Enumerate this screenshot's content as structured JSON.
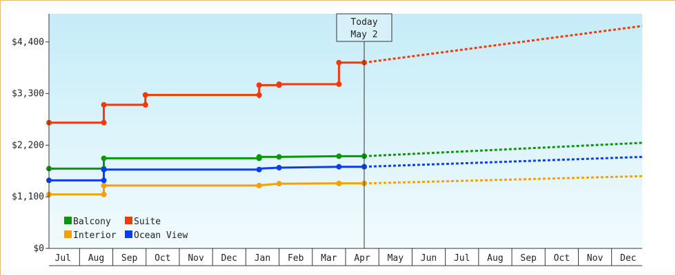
{
  "chart_data": {
    "type": "line",
    "title": "",
    "xlabel": "",
    "ylabel": "",
    "ylim": [
      0,
      5000
    ],
    "y_ticks": [
      0,
      1100,
      2200,
      3300,
      4400
    ],
    "y_tick_labels": [
      "$0",
      "$1,100",
      "$2,200",
      "$3,300",
      "$4,400"
    ],
    "x_tick_labels": [
      "Jul",
      "Aug",
      "Sep",
      "Oct",
      "Nov",
      "Dec",
      "Jan",
      "Feb",
      "Mar",
      "Apr",
      "May",
      "Jun",
      "Jul",
      "Aug",
      "Sep",
      "Oct",
      "Nov",
      "Dec"
    ],
    "x_range": [
      -0.42,
      17.42
    ],
    "today": {
      "label_line1": "Today",
      "label_line2": "May 2",
      "x": 9.06
    },
    "legend": {
      "position": "bottom-left"
    },
    "grid": false,
    "series": [
      {
        "name": "Balcony",
        "color": "#0a960a",
        "points": [
          [
            -0.42,
            1700
          ],
          [
            1.23,
            1700
          ],
          [
            1.23,
            1920
          ],
          [
            5.9,
            1920
          ],
          [
            5.9,
            1950
          ],
          [
            6.5,
            1950
          ],
          [
            8.3,
            1965
          ],
          [
            9.06,
            1965
          ]
        ],
        "marked": [
          [
            -0.42,
            1700
          ],
          [
            1.23,
            1700
          ],
          [
            1.23,
            1920
          ],
          [
            5.9,
            1920
          ],
          [
            5.9,
            1950
          ],
          [
            6.5,
            1950
          ],
          [
            8.3,
            1965
          ],
          [
            9.06,
            1965
          ]
        ],
        "forecast": [
          [
            9.06,
            1965
          ],
          [
            17.42,
            2250
          ]
        ]
      },
      {
        "name": "Suite",
        "color": "#f03a0a",
        "points": [
          [
            -0.42,
            2680
          ],
          [
            1.23,
            2680
          ],
          [
            1.23,
            3060
          ],
          [
            2.48,
            3060
          ],
          [
            2.48,
            3270
          ],
          [
            5.9,
            3270
          ],
          [
            5.9,
            3220
          ],
          [
            5.9,
            3480
          ],
          [
            6.5,
            3480
          ],
          [
            6.5,
            3500
          ],
          [
            8.3,
            3500
          ],
          [
            8.3,
            3960
          ],
          [
            9.06,
            3960
          ]
        ],
        "marked": [
          [
            -0.42,
            2680
          ],
          [
            1.23,
            2680
          ],
          [
            1.23,
            3060
          ],
          [
            2.48,
            3060
          ],
          [
            2.48,
            3270
          ],
          [
            5.9,
            3270
          ],
          [
            5.9,
            3480
          ],
          [
            6.5,
            3480
          ],
          [
            6.5,
            3500
          ],
          [
            8.3,
            3500
          ],
          [
            8.3,
            3960
          ],
          [
            9.06,
            3960
          ]
        ],
        "forecast": [
          [
            9.06,
            3960
          ],
          [
            17.42,
            4740
          ]
        ]
      },
      {
        "name": "Interior",
        "color": "#f5a000",
        "points": [
          [
            -0.42,
            1150
          ],
          [
            1.23,
            1150
          ],
          [
            1.23,
            1340
          ],
          [
            5.9,
            1340
          ],
          [
            5.9,
            1345
          ],
          [
            6.5,
            1380
          ],
          [
            8.3,
            1385
          ],
          [
            9.06,
            1385
          ]
        ],
        "marked": [
          [
            -0.42,
            1150
          ],
          [
            1.23,
            1150
          ],
          [
            1.23,
            1340
          ],
          [
            5.9,
            1340
          ],
          [
            6.5,
            1380
          ],
          [
            8.3,
            1385
          ],
          [
            9.06,
            1385
          ]
        ],
        "forecast": [
          [
            9.06,
            1385
          ],
          [
            17.42,
            1540
          ]
        ]
      },
      {
        "name": "Ocean View",
        "color": "#0a3cf0",
        "points": [
          [
            -0.42,
            1450
          ],
          [
            1.23,
            1450
          ],
          [
            1.23,
            1680
          ],
          [
            5.9,
            1680
          ],
          [
            5.9,
            1700
          ],
          [
            6.5,
            1720
          ],
          [
            8.3,
            1740
          ],
          [
            9.06,
            1740
          ]
        ],
        "marked": [
          [
            -0.42,
            1450
          ],
          [
            1.23,
            1450
          ],
          [
            1.23,
            1680
          ],
          [
            5.9,
            1680
          ],
          [
            6.5,
            1720
          ],
          [
            8.3,
            1740
          ],
          [
            9.06,
            1740
          ]
        ],
        "forecast": [
          [
            9.06,
            1740
          ],
          [
            17.42,
            1950
          ]
        ]
      }
    ]
  }
}
